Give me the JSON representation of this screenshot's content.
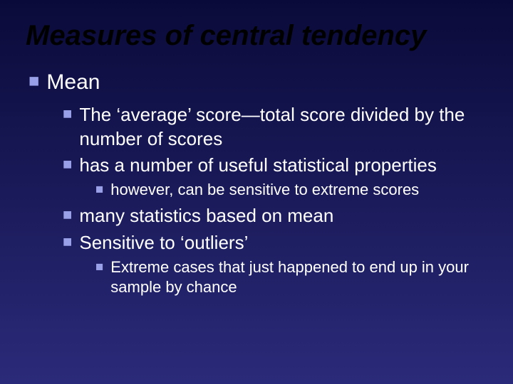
{
  "colors": {
    "background_top": "#0a0a3a",
    "background_bottom": "#2a2a7a",
    "title_color": "#000000",
    "text_color": "#ffffff",
    "bullet_color": "#9aa0e8"
  },
  "typography": {
    "title_fontsize": 40,
    "level1_fontsize": 30,
    "level2_fontsize": 26,
    "level3_fontsize": 22,
    "font_family": "Arial",
    "title_italic": true,
    "title_bold": true
  },
  "bullet_glyph": "■",
  "title": "Measures of central tendency",
  "outline": {
    "l1": {
      "text": "Mean"
    },
    "l2a": {
      "text": "The ‘average’ score—total score divided by the number of scores"
    },
    "l2b": {
      "text": "has a number of useful statistical properties"
    },
    "l3a": {
      "text": "however, can be sensitive to extreme scores"
    },
    "l2c": {
      "text": "many statistics based on mean"
    },
    "l2d": {
      "text": "Sensitive to ‘outliers’"
    },
    "l3b": {
      "text": "Extreme cases that just happened to end up in your sample by chance"
    }
  }
}
